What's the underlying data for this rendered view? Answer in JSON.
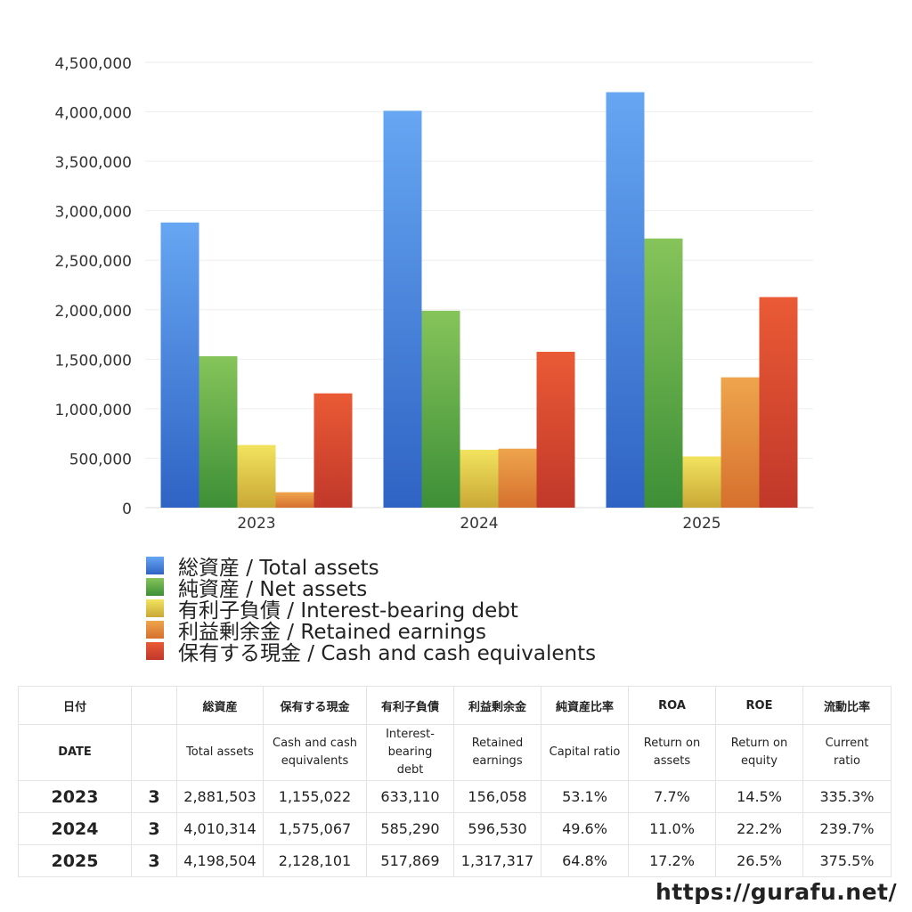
{
  "chart_data": {
    "type": "bar",
    "categories": [
      "2023",
      "2024",
      "2025"
    ],
    "ylim": [
      0,
      4500000
    ],
    "ytick_step": 500000,
    "grid": true,
    "legend_position": "bottom",
    "series": [
      {
        "name": "総資産 / Total assets",
        "values": [
          2881503,
          4010314,
          4198504
        ],
        "color_top": "#66a6f2",
        "color_bottom": "#2f63c4"
      },
      {
        "name": "純資産 / Net assets",
        "values": [
          1530000,
          1990000,
          2720000
        ],
        "color_top": "#86c45a",
        "color_bottom": "#3d8f37"
      },
      {
        "name": "有利子負債 / Interest-bearing debt",
        "values": [
          633110,
          585290,
          517869
        ],
        "color_top": "#f2e35e",
        "color_bottom": "#c9a836"
      },
      {
        "name": "利益剰余金 / Retained earnings",
        "values": [
          156058,
          596530,
          1317317
        ],
        "color_top": "#eea54c",
        "color_bottom": "#d6702e"
      },
      {
        "name": "保有する現金 /  Cash and cash equivalents",
        "values": [
          1155022,
          1575067,
          2128101
        ],
        "color_top": "#ea5a35",
        "color_bottom": "#c1382a"
      }
    ]
  },
  "table": {
    "header_jp": [
      "日付",
      "",
      "総資産",
      "保有する現金",
      "有利子負債",
      "利益剰余金",
      "純資産比率",
      "ROA",
      "ROE",
      "流動比率"
    ],
    "header_en": [
      "DATE",
      "",
      "Total assets",
      "Cash and cash\nequivalents",
      "Interest-\nbearing\ndebt",
      "Retained\nearnings",
      "Capital ratio",
      "Return on\nassets",
      "Return on\nequity",
      "Current\nratio"
    ],
    "rows": [
      [
        "2023",
        "3",
        "2,881,503",
        "1,155,022",
        "633,110",
        "156,058",
        "53.1%",
        "7.7%",
        "14.5%",
        "335.3%"
      ],
      [
        "2024",
        "3",
        "4,010,314",
        "1,575,067",
        "585,290",
        "596,530",
        "49.6%",
        "11.0%",
        "22.2%",
        "239.7%"
      ],
      [
        "2025",
        "3",
        "4,198,504",
        "2,128,101",
        "517,869",
        "1,317,317",
        "64.8%",
        "17.2%",
        "26.5%",
        "375.5%"
      ]
    ]
  },
  "footer": {
    "site": "https://gurafu.net/"
  }
}
